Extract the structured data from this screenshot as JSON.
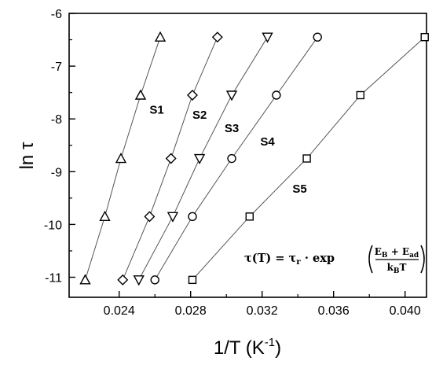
{
  "chart_data": {
    "type": "scatter",
    "title": "",
    "xlabel": "1/T (K",
    "xlabel_sup": "-1",
    "xlabel_close": ")",
    "ylabel": "ln τ",
    "xlim": [
      0.0212,
      0.0412
    ],
    "ylim": [
      -11.38,
      -6.0
    ],
    "xticks": [
      0.024,
      0.028,
      0.032,
      0.036,
      0.04
    ],
    "xtick_labels": [
      "0.024",
      "0.028",
      "0.032",
      "0.036",
      "0.040"
    ],
    "yticks": [
      -11,
      -10,
      -9,
      -8,
      -7,
      -6
    ],
    "ytick_labels": [
      "-11",
      "-10",
      "-9",
      "-8",
      "-7",
      "-6"
    ],
    "grid": false,
    "legend": "none",
    "series": [
      {
        "name": "S1",
        "marker": "triangle-up",
        "x": [
          0.0221,
          0.0232,
          0.0241,
          0.0252,
          0.0263
        ],
        "y": [
          -11.05,
          -9.85,
          -8.75,
          -7.55,
          -6.45
        ]
      },
      {
        "name": "S2",
        "marker": "diamond",
        "x": [
          0.0242,
          0.0257,
          0.0269,
          0.0281,
          0.0295
        ],
        "y": [
          -11.05,
          -9.85,
          -8.75,
          -7.55,
          -6.45
        ]
      },
      {
        "name": "S3",
        "marker": "triangle-down",
        "x": [
          0.0251,
          0.027,
          0.0285,
          0.0303,
          0.0323
        ],
        "y": [
          -11.05,
          -9.85,
          -8.75,
          -7.55,
          -6.45
        ]
      },
      {
        "name": "S4",
        "marker": "circle",
        "x": [
          0.026,
          0.0281,
          0.0303,
          0.0328,
          0.0351
        ],
        "y": [
          -11.05,
          -9.85,
          -8.75,
          -7.55,
          -6.45
        ]
      },
      {
        "name": "S5",
        "marker": "square",
        "x": [
          0.0281,
          0.0313,
          0.0345,
          0.0375,
          0.0411
        ],
        "y": [
          -11.05,
          -9.85,
          -8.75,
          -7.55,
          -6.45
        ]
      }
    ],
    "annotations": [
      {
        "text": "S1",
        "x": 0.0257,
        "y": -7.9
      },
      {
        "text": "S2",
        "x": 0.0281,
        "y": -8.0
      },
      {
        "text": "S3",
        "x": 0.0299,
        "y": -8.25
      },
      {
        "text": "S4",
        "x": 0.0319,
        "y": -8.5
      },
      {
        "text": "S5",
        "x": 0.0337,
        "y": -9.4
      }
    ],
    "formula": {
      "lhs": "τ(T) = τ",
      "lhs_sub": "r",
      "mid": " · exp",
      "num_a": "E",
      "num_a_sub": "B",
      "num_plus": " + E",
      "num_b_sub": "ad",
      "den": "k",
      "den_sub": "B",
      "den_tail": "T"
    }
  }
}
